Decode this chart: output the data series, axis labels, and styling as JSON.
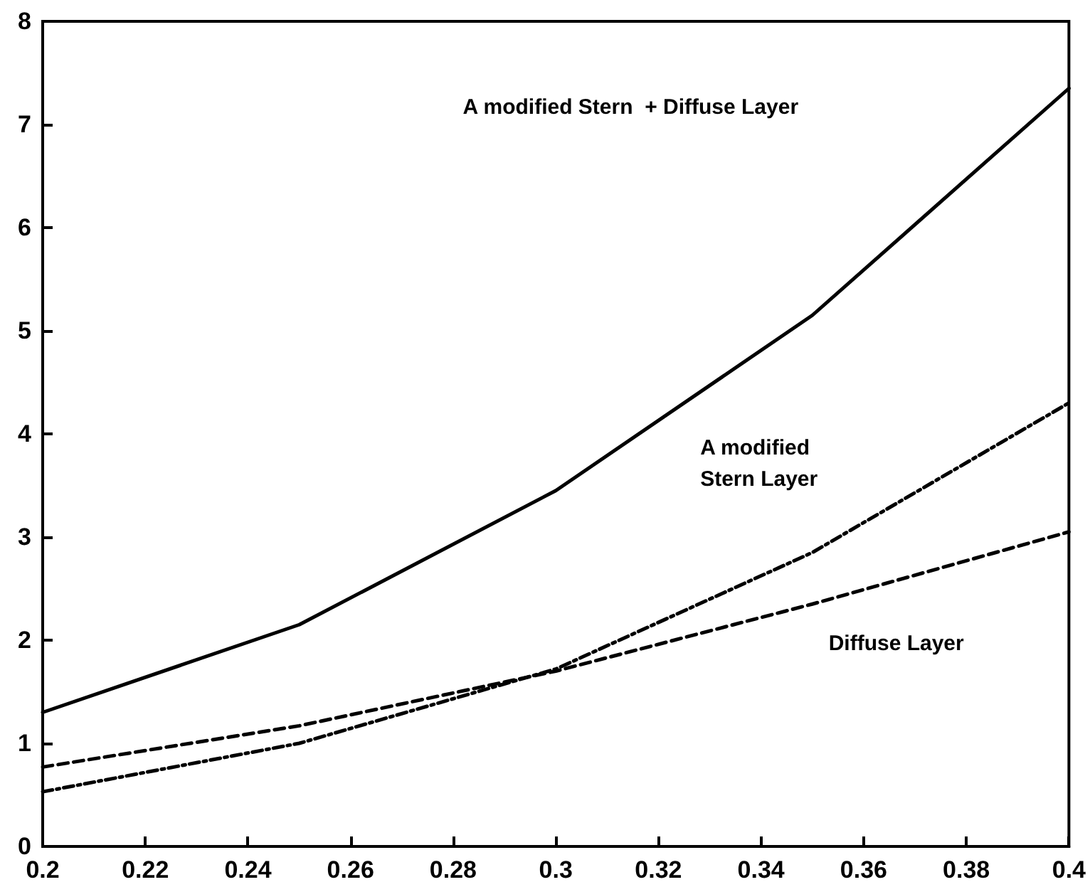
{
  "chart_data": {
    "type": "line",
    "x": [
      0.2,
      0.25,
      0.3,
      0.35,
      0.4
    ],
    "series": [
      {
        "color": "#000000",
        "line_style": "solid",
        "values": [
          1.3,
          2.15,
          3.45,
          5.15,
          7.35
        ]
      },
      {
        "color": "#000000",
        "line_style": "dashdot",
        "values": [
          0.53,
          1.0,
          1.72,
          2.85,
          4.3
        ]
      },
      {
        "color": "#000000",
        "line_style": "dashed",
        "values": [
          0.77,
          1.17,
          1.7,
          2.35,
          3.05
        ]
      }
    ],
    "xlim": [
      0.2,
      0.4
    ],
    "xticks": [
      0.2,
      0.22,
      0.24,
      0.26,
      0.28,
      0.3,
      0.32,
      0.34,
      0.36,
      0.38,
      0.4
    ],
    "ylim": [
      0,
      8
    ],
    "yticks": [
      0,
      1,
      2,
      3,
      4,
      5,
      6,
      7,
      8
    ],
    "grid": false,
    "marker": "none",
    "annotations": [
      "A modified Stern  + Diffuse Layer",
      "A modified\nStern Layer",
      "Diffuse Layer"
    ]
  }
}
